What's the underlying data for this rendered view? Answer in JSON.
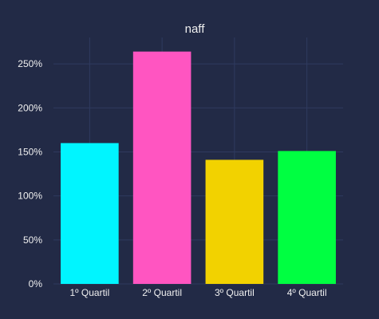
{
  "chart_data": {
    "type": "bar",
    "title": "naff",
    "categories": [
      "1º Quartil",
      "2º Quartil",
      "3º Quartil",
      "4º Quartil"
    ],
    "values": [
      160,
      264,
      141,
      151
    ],
    "colors": [
      "#00f5ff",
      "#ff55c1",
      "#f2d200",
      "#00ff41"
    ],
    "value_unit": "%",
    "ylim": [
      0,
      280
    ],
    "yticks": [
      0,
      50,
      100,
      150,
      200,
      250
    ],
    "ytick_labels": [
      "0%",
      "50%",
      "100%",
      "150%",
      "200%",
      "250%"
    ],
    "grid": true,
    "legend": false,
    "background": "#222a46",
    "grid_color": "#2f3a5f",
    "text_color": "#f0f0f0"
  }
}
